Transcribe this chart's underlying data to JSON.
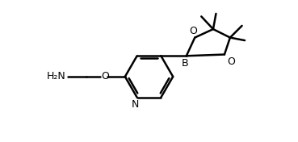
{
  "background_color": "#ffffff",
  "line_color": "#000000",
  "line_width": 1.8,
  "font_size": 9,
  "figsize": [
    3.69,
    1.76
  ],
  "dpi": 100,
  "xlim": [
    0,
    10
  ],
  "ylim": [
    0,
    5
  ]
}
